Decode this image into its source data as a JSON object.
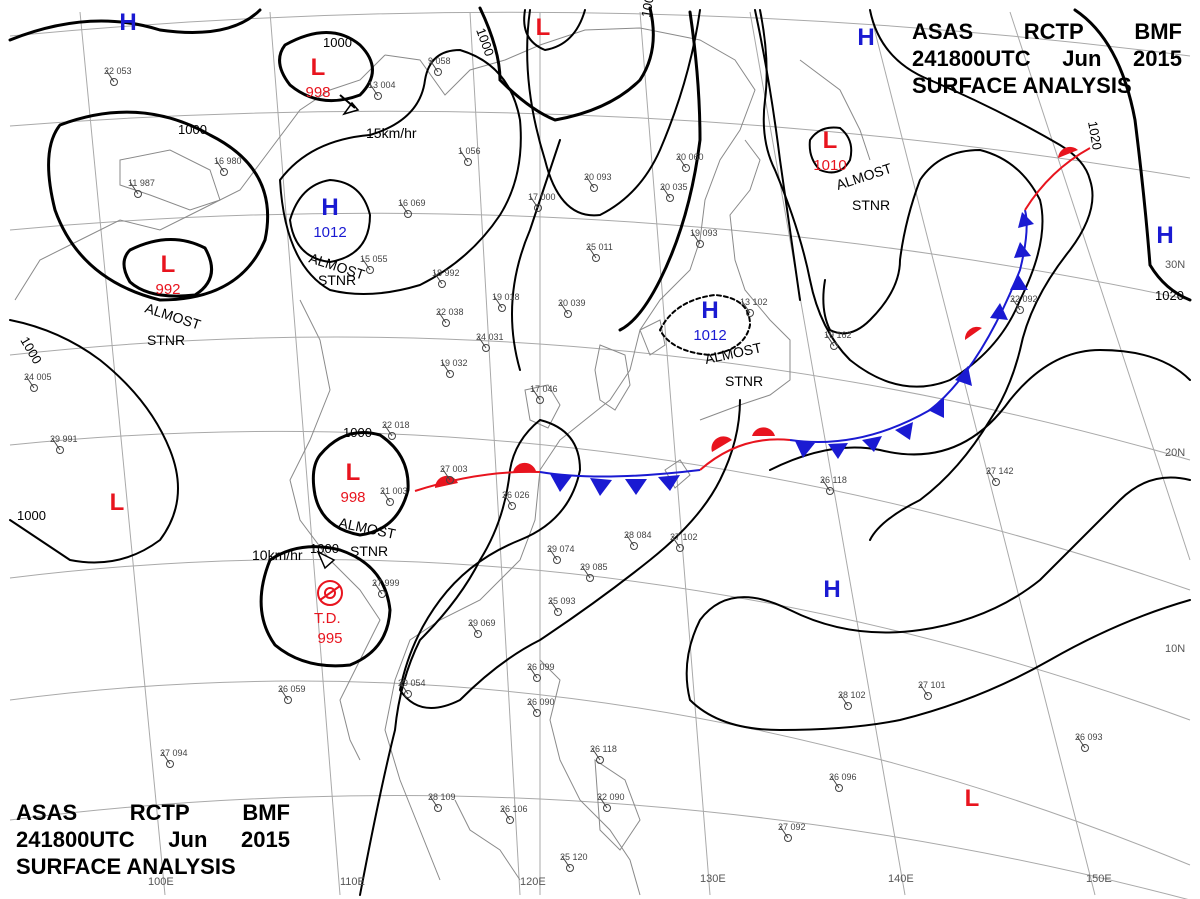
{
  "header": {
    "line1": [
      "ASAS",
      "RCTP",
      "BMF"
    ],
    "line2": [
      "241800UTC",
      "Jun",
      "2015"
    ],
    "line3": "SURFACE  ANALYSIS"
  },
  "colors": {
    "low": "#e8141e",
    "high": "#1a1ad2",
    "isobar": "#000000",
    "grid": "#a9a9a9"
  },
  "pressure_systems": [
    {
      "type": "H",
      "value": ""
    },
    {
      "type": "L",
      "value": "998"
    },
    {
      "type": "L",
      "value": ""
    },
    {
      "type": "H",
      "value": ""
    },
    {
      "type": "L",
      "value": "1010"
    },
    {
      "type": "H",
      "value": "1012"
    },
    {
      "type": "L",
      "value": "992"
    },
    {
      "type": "H",
      "value": ""
    },
    {
      "type": "H",
      "value": "1012"
    },
    {
      "type": "L",
      "value": "998"
    },
    {
      "type": "L",
      "value": ""
    },
    {
      "type": "L",
      "value": "995"
    },
    {
      "type": "H",
      "value": ""
    },
    {
      "type": "L",
      "value": ""
    }
  ],
  "annotations": {
    "almost": "ALMOST",
    "stnr": "STNR",
    "motion_15": "15km/hr",
    "motion_10": "10km/hr",
    "td": "T.D."
  },
  "isobar_labels": [
    "1000",
    "1000",
    "1000",
    "1000",
    "1000",
    "1000",
    "1000",
    "1000",
    "1020",
    "1020"
  ],
  "grid_labels": {
    "lon": [
      "100E",
      "110E",
      "120E",
      "130E",
      "140E",
      "150E"
    ],
    "lat": [
      "30N",
      "20N",
      "10N"
    ]
  },
  "station_plots": [
    "22 053",
    "13 004",
    "9 058",
    "1 056",
    "16 069",
    "18 992",
    "19 018",
    "20 039",
    "24 031",
    "22 018",
    "21 003",
    "27 003",
    "26 026",
    "20 060",
    "20 035",
    "19 093",
    "13 102",
    "19 162",
    "22 092",
    "28 084",
    "27 102",
    "29 074",
    "29 085",
    "25 093",
    "29 069",
    "29 054",
    "26 059",
    "27 094",
    "28 109",
    "26 106",
    "25 120",
    "26 099",
    "26 090",
    "26 118",
    "22 090",
    "27 092",
    "26 096",
    "26 093",
    "28 102",
    "27 101",
    "27 142",
    "26 118",
    "16 980",
    "11 987",
    "25 011",
    "17 000",
    "20 093",
    "15 055",
    "22 038",
    "19 032",
    "17 046",
    "29 991",
    "24 005",
    "27 999"
  ]
}
